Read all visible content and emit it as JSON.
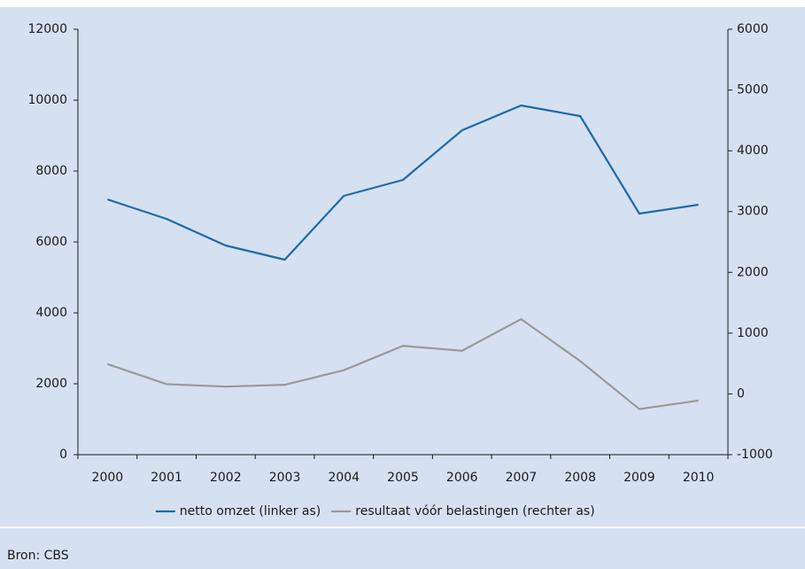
{
  "chart_data": {
    "type": "line",
    "categories": [
      "2000",
      "2001",
      "2002",
      "2003",
      "2004",
      "2005",
      "2006",
      "2007",
      "2008",
      "2009",
      "2010"
    ],
    "series": [
      {
        "name": "netto omzet (linker as)",
        "color": "#1f6aa8",
        "values": [
          7200,
          6650,
          5900,
          5500,
          7300,
          7750,
          9150,
          9850,
          9550,
          6800,
          7050
        ]
      },
      {
        "name": "resultaat vóór belastingen (rechter as)",
        "color": "#999999",
        "axis": "y2",
        "values": [
          490,
          160,
          120,
          150,
          390,
          790,
          710,
          1230,
          540,
          -250,
          -110
        ]
      }
    ],
    "ylim": [
      0,
      12000
    ],
    "yticks": [
      0,
      2000,
      4000,
      6000,
      8000,
      10000,
      12000
    ],
    "y2lim": [
      -1000,
      6000
    ],
    "y2ticks": [
      -1000,
      0,
      1000,
      2000,
      3000,
      4000,
      5000,
      6000
    ],
    "legend": "bottom",
    "source": "Bron: CBS"
  }
}
